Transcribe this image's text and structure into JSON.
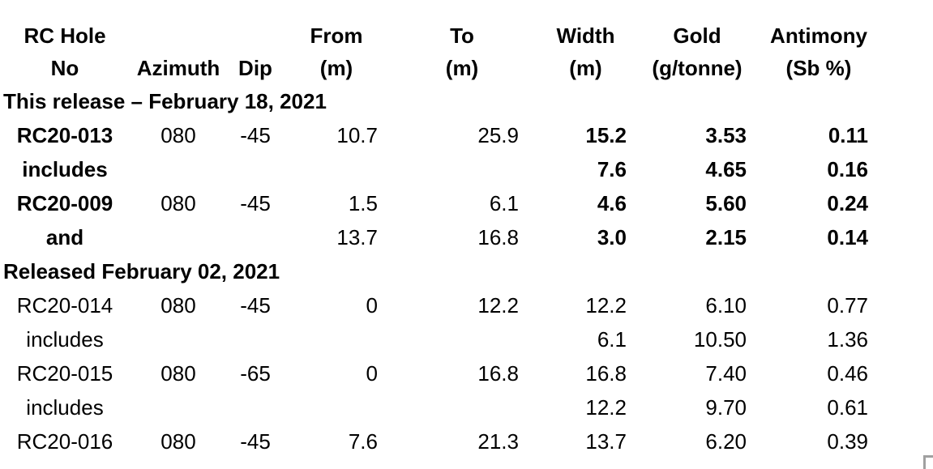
{
  "accent_colors": {
    "text": "#000000",
    "background": "#ffffff",
    "corner_fragment": "#a0a0a0"
  },
  "chart_data": {
    "type": "table",
    "title": "",
    "columns": [
      {
        "id": "hole",
        "label": "RC Hole\nNo"
      },
      {
        "id": "azimuth",
        "label": "Azimuth"
      },
      {
        "id": "dip",
        "label": "Dip"
      },
      {
        "id": "from",
        "label": "From\n(m)"
      },
      {
        "id": "to",
        "label": "To\n(m)"
      },
      {
        "id": "width",
        "label": "Width\n(m)"
      },
      {
        "id": "gold",
        "label": "Gold\n(g/tonne)"
      },
      {
        "id": "antimony",
        "label": "Antimony\n(Sb %)"
      }
    ],
    "rows": [
      {
        "type": "section",
        "label": "This release – February 18, 2021"
      },
      {
        "type": "data",
        "emphasis": true,
        "hole": "RC20-013",
        "azimuth": "080",
        "dip": "-45",
        "from": "10.7",
        "to": "25.9",
        "width": "15.2",
        "gold": "3.53",
        "antimony": "0.11"
      },
      {
        "type": "data",
        "emphasis": true,
        "hole": "includes",
        "azimuth": "",
        "dip": "",
        "from": "",
        "to": "",
        "width": "7.6",
        "gold": "4.65",
        "antimony": "0.16"
      },
      {
        "type": "data",
        "emphasis": true,
        "hole": "RC20-009",
        "azimuth": "080",
        "dip": "-45",
        "from": "1.5",
        "to": "6.1",
        "width": "4.6",
        "gold": "5.60",
        "antimony": "0.24"
      },
      {
        "type": "data",
        "emphasis": true,
        "hole": "and",
        "azimuth": "",
        "dip": "",
        "from": "13.7",
        "to": "16.8",
        "width": "3.0",
        "gold": "2.15",
        "antimony": "0.14"
      },
      {
        "type": "section",
        "label": "Released February 02, 2021"
      },
      {
        "type": "data",
        "emphasis": false,
        "hole": "RC20-014",
        "azimuth": "080",
        "dip": "-45",
        "from": "0",
        "to": "12.2",
        "width": "12.2",
        "gold": "6.10",
        "antimony": "0.77"
      },
      {
        "type": "data",
        "emphasis": false,
        "hole": "includes",
        "azimuth": "",
        "dip": "",
        "from": "",
        "to": "",
        "width": "6.1",
        "gold": "10.50",
        "antimony": "1.36"
      },
      {
        "type": "data",
        "emphasis": false,
        "hole": "RC20-015",
        "azimuth": "080",
        "dip": "-65",
        "from": "0",
        "to": "16.8",
        "width": "16.8",
        "gold": "7.40",
        "antimony": "0.46"
      },
      {
        "type": "data",
        "emphasis": false,
        "hole": "includes",
        "azimuth": "",
        "dip": "",
        "from": "",
        "to": "",
        "width": "12.2",
        "gold": "9.70",
        "antimony": "0.61"
      },
      {
        "type": "data",
        "emphasis": false,
        "hole": "RC20-016",
        "azimuth": "080",
        "dip": "-45",
        "from": "7.6",
        "to": "21.3",
        "width": "13.7",
        "gold": "6.20",
        "antimony": "0.39"
      }
    ]
  }
}
